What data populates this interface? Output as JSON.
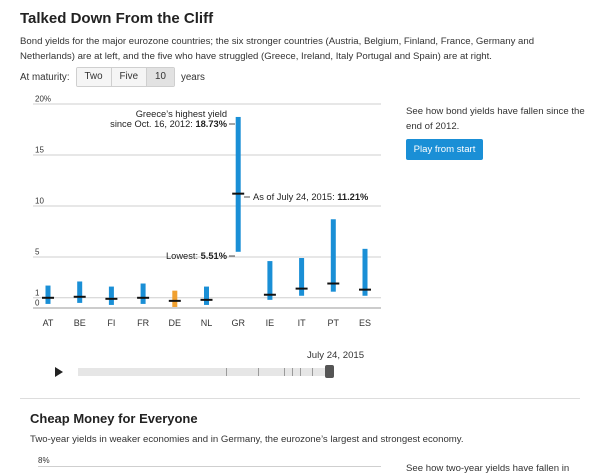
{
  "section1": {
    "title": "Talked Down From the Cliff",
    "description": "Bond yields for the major eurozone countries; the six stronger countries (Austria, Belgium, Finland, France, Germany and Netherlands) are at left, and the five who have struggled (Greece, Ireland, Italy Portugal and Spain) are at right.",
    "maturity_label": "At maturity:",
    "maturity_options": [
      "Two",
      "Five",
      "10"
    ],
    "maturity_selected": "10",
    "maturity_unit": "years",
    "side_text": "See how bond yields have fallen since the end of 2012.",
    "play_label": "Play from start",
    "timeline_date": "July 24, 2015"
  },
  "chart_data": {
    "type": "range-bar",
    "ylim": [
      0,
      20
    ],
    "y_ticks": [
      {
        "value": 0,
        "label": "0"
      },
      {
        "value": 1,
        "label": "1"
      },
      {
        "value": 5,
        "label": "5"
      },
      {
        "value": 10,
        "label": "10"
      },
      {
        "value": 15,
        "label": "15"
      },
      {
        "value": 20,
        "label": "20%"
      }
    ],
    "categories": [
      "AT",
      "BE",
      "FI",
      "FR",
      "DE",
      "NL",
      "GR",
      "IE",
      "IT",
      "PT",
      "ES"
    ],
    "highlight_category": "DE",
    "colors": {
      "bar": "#1a8fd6",
      "highlight": "#f0a030",
      "current_marker": "#111111",
      "grid": "#cfcfcf"
    },
    "ranges": [
      {
        "category": "AT",
        "low": 0.4,
        "high": 2.2,
        "current": 1.0
      },
      {
        "category": "BE",
        "low": 0.5,
        "high": 2.6,
        "current": 1.1
      },
      {
        "category": "FI",
        "low": 0.3,
        "high": 2.1,
        "current": 0.9
      },
      {
        "category": "FR",
        "low": 0.4,
        "high": 2.4,
        "current": 1.0
      },
      {
        "category": "DE",
        "low": 0.1,
        "high": 1.7,
        "current": 0.7
      },
      {
        "category": "NL",
        "low": 0.3,
        "high": 2.1,
        "current": 0.8
      },
      {
        "category": "GR",
        "low": 5.51,
        "high": 18.73,
        "current": 11.21
      },
      {
        "category": "IE",
        "low": 0.8,
        "high": 4.6,
        "current": 1.3
      },
      {
        "category": "IT",
        "low": 1.2,
        "high": 4.9,
        "current": 1.9
      },
      {
        "category": "PT",
        "low": 1.6,
        "high": 8.7,
        "current": 2.4
      },
      {
        "category": "ES",
        "low": 1.2,
        "high": 5.8,
        "current": 1.8
      }
    ],
    "annotations": {
      "greece_high_line1": "Greece’s highest yield",
      "greece_high_line2_prefix": "since Oct. 16, 2012: ",
      "greece_high_value": "18.73%",
      "current_prefix": "As of July 24, 2015: ",
      "current_value": "11.21%",
      "low_prefix": "Lowest: ",
      "low_value": "5.51%"
    }
  },
  "section2": {
    "title": "Cheap Money for Everyone",
    "description": "Two-year yields in weaker economies and in Germany, the eurozone’s largest and strongest economy.",
    "y_top_label": "8%",
    "side_text": "See how two-year yields have fallen in"
  }
}
